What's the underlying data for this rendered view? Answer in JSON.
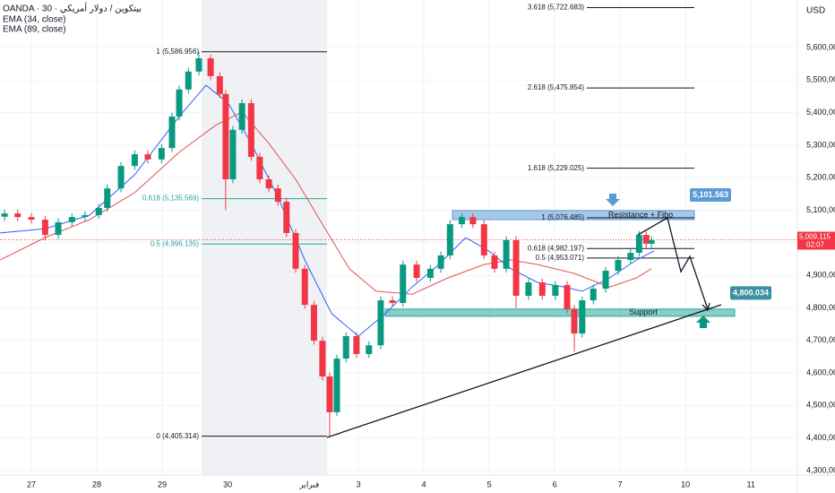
{
  "header": {
    "symbol": "OANDA · 30 · بيتكوين / دولار أمريكي",
    "currency": "USD"
  },
  "chart_data": {
    "type": "candlestick",
    "xlim": [
      -0.48,
      11.71
    ],
    "ylim": [
      4286000,
      5746000
    ],
    "xticks": [
      {
        "value": 0,
        "label": "27"
      },
      {
        "value": 1,
        "label": "28"
      },
      {
        "value": 2,
        "label": "29"
      },
      {
        "value": 3,
        "label": "30"
      },
      {
        "value": 4.25,
        "label": "فبراير"
      },
      {
        "value": 5,
        "label": "3"
      },
      {
        "value": 6,
        "label": "4"
      },
      {
        "value": 7,
        "label": "5"
      },
      {
        "value": 8,
        "label": "6"
      },
      {
        "value": 9,
        "label": "7"
      },
      {
        "value": 10,
        "label": "10"
      },
      {
        "value": 11,
        "label": "11"
      }
    ],
    "yticks": [
      {
        "value": 5600000,
        "label": "5,600,000"
      },
      {
        "value": 5500000,
        "label": "5,500,000"
      },
      {
        "value": 5400000,
        "label": "5,400,000"
      },
      {
        "value": 5300000,
        "label": "5,300,000"
      },
      {
        "value": 5200000,
        "label": "5,200,000"
      },
      {
        "value": 5100000,
        "label": "5,100,000"
      },
      {
        "value": 5000000,
        "label": "5,000,000"
      },
      {
        "value": 4900000,
        "label": "4,900,000"
      },
      {
        "value": 4800000,
        "label": "4,800,000"
      },
      {
        "value": 4700000,
        "label": "4,700,000"
      },
      {
        "value": 4600000,
        "label": "4,600,000"
      },
      {
        "value": 4500000,
        "label": "4,500,000"
      },
      {
        "value": 4400000,
        "label": "4,400,000"
      },
      {
        "value": 4300000,
        "label": "4,300,000"
      }
    ],
    "up_color": "#089981",
    "down_color": "#f23645",
    "candles": {
      "x": [
        -0.41,
        -0.21,
        0,
        0.21,
        0.41,
        0.62,
        0.82,
        1.03,
        1.16,
        1.37,
        1.58,
        1.78,
        1.99,
        2.15,
        2.26,
        2.4,
        2.56,
        2.74,
        2.88,
        2.97,
        3.08,
        3.22,
        3.36,
        3.49,
        3.63,
        3.77,
        3.9,
        4.04,
        4.18,
        4.32,
        4.45,
        4.56,
        4.67,
        4.81,
        4.97,
        5.16,
        5.34,
        5.52,
        5.68,
        5.89,
        6.1,
        6.26,
        6.4,
        6.58,
        6.75,
        6.92,
        7.08,
        7.26,
        7.41,
        7.6,
        7.81,
        8.01,
        8.19,
        8.3,
        8.42,
        8.59,
        8.78,
        8.97,
        9.16,
        9.29,
        9.4,
        9.48
      ],
      "open": [
        5080000,
        5090000,
        5079000,
        5071000,
        5024000,
        5063000,
        5079000,
        5085000,
        5107000,
        5167000,
        5236000,
        5272000,
        5256000,
        5291000,
        5388000,
        5471000,
        5526000,
        5567000,
        5512000,
        5457000,
        5195000,
        5347000,
        5429000,
        5264000,
        5195000,
        5167000,
        5126000,
        5030000,
        4920000,
        4809000,
        4699000,
        4589000,
        4479000,
        4644000,
        4713000,
        4658000,
        4685000,
        4823000,
        4815000,
        4933000,
        4892000,
        4920000,
        4961000,
        5057000,
        5079000,
        5057000,
        4961000,
        4920000,
        5008000,
        4837000,
        4878000,
        4837000,
        4870000,
        4796000,
        4721000,
        4823000,
        4859000,
        4914000,
        4947000,
        4969000,
        5024000,
        4997000
      ],
      "high": [
        5102000,
        5102000,
        5091000,
        5083000,
        5075000,
        5091000,
        5097000,
        5119000,
        5179000,
        5248000,
        5284000,
        5284000,
        5303000,
        5400000,
        5483000,
        5538000,
        5587000,
        5579000,
        5524000,
        5469000,
        5359000,
        5441000,
        5441000,
        5276000,
        5207000,
        5179000,
        5138000,
        5042000,
        4932000,
        4821000,
        4711000,
        4601000,
        4656000,
        4725000,
        4725000,
        4697000,
        4835000,
        4835000,
        4945000,
        4945000,
        4932000,
        4973000,
        5069000,
        5090000,
        5091000,
        5069000,
        4973000,
        5020000,
        5020000,
        4890000,
        4890000,
        4882000,
        4882000,
        4808000,
        4835000,
        4871000,
        4926000,
        4959000,
        4981000,
        5036000,
        5036000,
        5020000
      ],
      "low": [
        5068000,
        5067000,
        5059000,
        5008000,
        5012000,
        5051000,
        5067000,
        5073000,
        5095000,
        5155000,
        5224000,
        5244000,
        5244000,
        5279000,
        5376000,
        5459000,
        5514000,
        5500000,
        5445000,
        5100000,
        5183000,
        5335000,
        5252000,
        5183000,
        5155000,
        5114000,
        5018000,
        4908000,
        4797000,
        4687000,
        4577000,
        4405000,
        4467000,
        4632000,
        4646000,
        4646000,
        4673000,
        4803000,
        4803000,
        4880000,
        4880000,
        4908000,
        4949000,
        5045000,
        5045000,
        4949000,
        4908000,
        4908000,
        4800000,
        4825000,
        4825000,
        4825000,
        4784000,
        4665000,
        4709000,
        4811000,
        4847000,
        4902000,
        4935000,
        4957000,
        4985000,
        4985000
      ],
      "close": [
        5090000,
        5079000,
        5071000,
        5024000,
        5063000,
        5079000,
        5085000,
        5107000,
        5167000,
        5236000,
        5272000,
        5256000,
        5291000,
        5388000,
        5471000,
        5526000,
        5567000,
        5512000,
        5457000,
        5195000,
        5347000,
        5429000,
        5264000,
        5195000,
        5167000,
        5126000,
        5030000,
        4920000,
        4809000,
        4699000,
        4589000,
        4479000,
        4644000,
        4713000,
        4658000,
        4685000,
        4823000,
        4815000,
        4933000,
        4892000,
        4920000,
        4961000,
        5057000,
        5079000,
        5057000,
        4961000,
        4920000,
        5008000,
        4837000,
        4878000,
        4837000,
        4870000,
        4796000,
        4721000,
        4823000,
        4859000,
        4914000,
        4947000,
        4969000,
        5024000,
        4997000,
        5008000
      ]
    },
    "series": [
      {
        "name": "EMA (34, close)",
        "color": "#2962ff",
        "x": [
          -0.48,
          0.21,
          0.89,
          1.58,
          2.26,
          2.67,
          3.01,
          3.36,
          3.77,
          4.18,
          4.59,
          5,
          5.41,
          5.82,
          6.23,
          6.64,
          6.99,
          7.33,
          7.74,
          8.15,
          8.42,
          8.84,
          9.25,
          9.52
        ],
        "values": [
          5030000,
          5043000,
          5085000,
          5209000,
          5388000,
          5484000,
          5429000,
          5305000,
          5140000,
          4947000,
          4782000,
          4713000,
          4782000,
          4864000,
          4933000,
          5016000,
          4975000,
          4920000,
          4878000,
          4864000,
          4851000,
          4892000,
          4947000,
          4975000
        ]
      },
      {
        "name": "EMA (89, close)",
        "color": "#e0524f",
        "x": [
          -0.48,
          0.21,
          0.89,
          1.58,
          2.26,
          2.81,
          3.22,
          3.63,
          4.04,
          4.45,
          4.86,
          5.27,
          5.82,
          6.37,
          6.92,
          7.33,
          7.74,
          8.29,
          8.84,
          9.25,
          9.48
        ],
        "values": [
          4947000,
          5016000,
          5071000,
          5154000,
          5278000,
          5360000,
          5402000,
          5305000,
          5195000,
          5057000,
          4920000,
          4851000,
          4842000,
          4892000,
          4933000,
          4947000,
          4933000,
          4906000,
          4864000,
          4892000,
          4920000
        ]
      }
    ],
    "fib_retracement": [
      {
        "value": 5586956,
        "label": "1 (5,586.956)"
      },
      {
        "value": 5135569,
        "label": "0.618 (5,135.569)"
      },
      {
        "value": 4996135,
        "label": "0.5 (4,996.135)"
      },
      {
        "value": 4405314,
        "label": "0 (4,405.314)"
      }
    ],
    "fib_extension": [
      {
        "value": 5722683,
        "label": "3.618 (5,722.683)"
      },
      {
        "value": 5475854,
        "label": "2.618 (5,475.854)"
      },
      {
        "value": 5229025,
        "label": "1.618 (5,229.025)"
      },
      {
        "value": 5076485,
        "label": "1 (5,076.485)"
      },
      {
        "value": 4982197,
        "label": "0.618 (4,982.197)"
      },
      {
        "value": 4953071,
        "label": "0.5 (4,953.071)"
      }
    ],
    "zones": [
      {
        "label": "Resistance + Fibo",
        "low": 5071000,
        "high": 5099000,
        "color": "#5b9bd5"
      },
      {
        "label": "Support",
        "low": 4774000,
        "high": 4796000,
        "color": "#26a69a"
      }
    ],
    "targets": [
      {
        "value": 5101563,
        "label": "5,101.563",
        "color": "#5b9bd5"
      },
      {
        "value": 4800034,
        "label": "4,800.034",
        "color": "#3a8fa0"
      }
    ],
    "last_price": {
      "value": 5009115,
      "label": "5,009.115",
      "time": "02:07"
    }
  }
}
